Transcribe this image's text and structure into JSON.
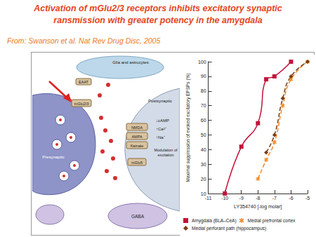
{
  "header": {
    "title_lines": [
      "Activation of mGlu2/3 receptors inhibits excitatory synaptic",
      "ransmission with greater potency in the amygdala"
    ],
    "source": "From: Swanson et al. Nat Rev Drug Disc, 2005"
  },
  "diagram": {
    "glia": "Glia and astrocytes",
    "presynaptic": "Presynaptic",
    "postsynaptic": "Postsynaptic",
    "transporter": "EAAT",
    "presynaptic_receptor": "mGlu2/3",
    "receptors": [
      "NMDA",
      "AMPA",
      "Kainate"
    ],
    "postsynaptic_receptor": "mGlu5",
    "messengers": [
      "↓cAMP",
      "↑Ca²⁺",
      "↑Na⁺"
    ],
    "effect": "Modulation of excitation",
    "interneuron": "GABA"
  },
  "chart_data": {
    "type": "line",
    "x_label": "LY354740 [-log molar]",
    "y_label": "Maximal suppression of evoked excitatory EPSPs (%)",
    "xlim": [
      -11,
      -5
    ],
    "xticks": [
      -11,
      -10,
      -9,
      -8,
      -7,
      -6,
      -5
    ],
    "ylim": [
      10,
      100
    ],
    "yticks": [
      10,
      20,
      30,
      40,
      50,
      60,
      70,
      80,
      90,
      100
    ],
    "grid": false,
    "legend": "bottom",
    "series": [
      {
        "name": "Amygdala (BLA–CeA)",
        "color": "#c4123a",
        "marker": "square",
        "line_style": "solid",
        "x": [
          -10,
          -9,
          -8,
          -7.5,
          -7,
          -6
        ],
        "values": [
          10,
          42,
          58,
          88,
          90,
          100
        ]
      },
      {
        "name": "Medial prefrontal cortex",
        "color": "#f08a24",
        "marker": "asterisk",
        "line_style": "dashed",
        "x": [
          -8,
          -7.5,
          -7,
          -6.5,
          -6,
          -5
        ],
        "values": [
          20,
          33,
          45,
          70,
          88,
          100
        ]
      },
      {
        "name": "Medial perforant path (hippocampus)",
        "color": "#7a3b14",
        "marker": "diamond",
        "line_style": "dashed",
        "x": [
          -7.5,
          -7,
          -6.5,
          -6,
          -5
        ],
        "values": [
          38,
          50,
          75,
          90,
          100
        ]
      }
    ]
  }
}
